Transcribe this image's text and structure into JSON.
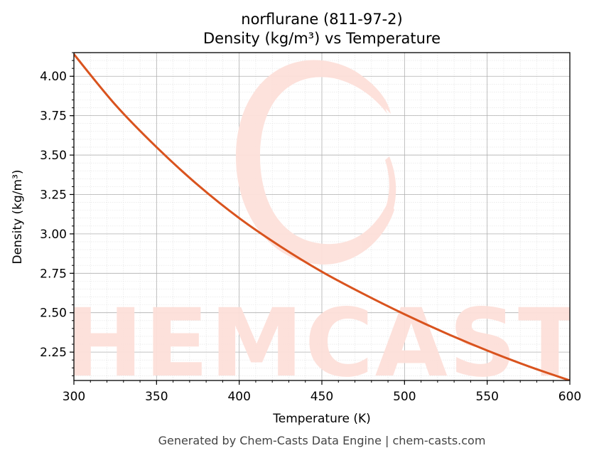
{
  "chart_data": {
    "type": "line",
    "title": "norflurane (811-97-2)",
    "subtitle": "Density (kg/m³) vs Temperature",
    "xlabel": "Temperature (K)",
    "ylabel": "Density (kg/m³)",
    "xlim": [
      300,
      600
    ],
    "ylim": [
      2.07,
      4.15
    ],
    "x_ticks": [
      300,
      350,
      400,
      450,
      500,
      550,
      600
    ],
    "y_ticks": [
      2.25,
      2.5,
      2.75,
      3.0,
      3.25,
      3.5,
      3.75,
      4.0
    ],
    "x_tick_labels": [
      "300",
      "350",
      "400",
      "450",
      "500",
      "550",
      "600"
    ],
    "y_tick_labels": [
      "2.25",
      "2.50",
      "2.75",
      "3.00",
      "3.25",
      "3.50",
      "3.75",
      "4.00"
    ],
    "grid": true,
    "series": [
      {
        "color": "#d9531e",
        "x": [
          300,
          325,
          350,
          375,
          400,
          425,
          450,
          475,
          500,
          525,
          550,
          575,
          600
        ],
        "y": [
          4.14,
          3.82,
          3.55,
          3.31,
          3.1,
          2.92,
          2.76,
          2.62,
          2.49,
          2.37,
          2.26,
          2.16,
          2.07
        ]
      }
    ]
  },
  "watermark": {
    "text": "CHEMCASTS",
    "color": "#fde0da"
  },
  "footer": {
    "text": "Generated by Chem-Casts Data Engine | chem-casts.com"
  }
}
